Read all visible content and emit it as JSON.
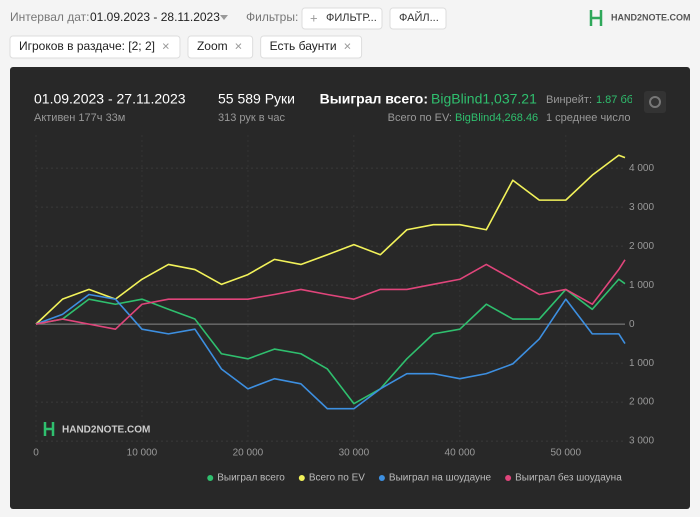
{
  "toolbar": {
    "date_label": "Интервал дат:",
    "date_range": "01.09.2023 - 28.11.2023",
    "filters_label": "Фильтры:",
    "filter_button": "ФИЛЬТР...",
    "file_button": "ФАЙЛ...",
    "logo": "HAND2NOTE.COM"
  },
  "chips": [
    "Игроков в раздаче: [2; 2]",
    "Zoom",
    "Есть баунти"
  ],
  "summary": {
    "period": "01.09.2023 - 27.11.2023",
    "active": "Активен 177ч 33м",
    "hands": "55 589 Руки",
    "rate": "313 рук в час",
    "won_label": "Выиграл всего:",
    "won_value": "BigBlind1,037.21",
    "ev_label": "Всего по EV:",
    "ev_value": "BigBlind4,268.46",
    "winrate_label": "Винрейт:",
    "winrate_value": "1.87 бб",
    "average": "1 среднее число"
  },
  "chart_data": {
    "type": "line",
    "watermark": "HAND2NOTE.COM",
    "x": [
      0,
      2500,
      5000,
      7500,
      10000,
      12500,
      15000,
      17500,
      20000,
      22500,
      25000,
      27500,
      30000,
      32500,
      35000,
      37500,
      40000,
      42500,
      45000,
      47500,
      50000,
      52500,
      55000,
      55589
    ],
    "series": [
      {
        "name": "Выиграл всего",
        "color": "#2fbf6e",
        "values": [
          0,
          130,
          640,
          510,
          640,
          380,
          130,
          -760,
          -890,
          -640,
          -760,
          -1150,
          -2040,
          -1660,
          -890,
          -250,
          -130,
          510,
          130,
          130,
          890,
          380,
          1150,
          1037.21
        ]
      },
      {
        "name": "Всего по EV",
        "color": "#f2f25a",
        "values": [
          0,
          640,
          890,
          640,
          1150,
          1530,
          1400,
          1020,
          1270,
          1660,
          1530,
          1780,
          2040,
          1780,
          2420,
          2550,
          2550,
          2420,
          3690,
          3180,
          3180,
          3820,
          4330,
          4268.46
        ]
      },
      {
        "name": "Выиграл на шоудауне",
        "color": "#3d8fe0",
        "values": [
          0,
          250,
          760,
          640,
          -130,
          -250,
          -130,
          -1150,
          -1660,
          -1400,
          -1530,
          -2170,
          -2170,
          -1660,
          -1270,
          -1270,
          -1400,
          -1270,
          -1020,
          -380,
          640,
          -250,
          -250,
          -500
        ]
      },
      {
        "name": "Выиграл без шоудауна",
        "color": "#e0457b",
        "values": [
          0,
          130,
          0,
          -130,
          510,
          640,
          640,
          640,
          640,
          760,
          890,
          760,
          640,
          890,
          890,
          1020,
          1150,
          1530,
          1150,
          760,
          890,
          510,
          1400,
          1650
        ]
      }
    ],
    "xlim": [
      0,
      55589
    ],
    "ylim": [
      -3100,
      4850
    ],
    "xticks": [
      0,
      {
        "value": 10000,
        "label": "10 000"
      },
      {
        "value": 20000,
        "label": "20 000"
      },
      {
        "value": 30000,
        "label": "30 000"
      },
      {
        "value": 40000,
        "label": "40 000"
      },
      {
        "value": 50000,
        "label": "50 000"
      }
    ],
    "yticks": [
      {
        "value": 4000,
        "label": "4 000"
      },
      {
        "value": 3000,
        "label": "3 000"
      },
      {
        "value": 2000,
        "label": "2 000"
      },
      {
        "value": 1000,
        "label": "1 000"
      },
      0,
      {
        "value": -1000,
        "label": "1 000"
      },
      {
        "value": -2000,
        "label": "2 000"
      },
      {
        "value": -3000,
        "label": "3 000"
      }
    ],
    "grid": true
  }
}
